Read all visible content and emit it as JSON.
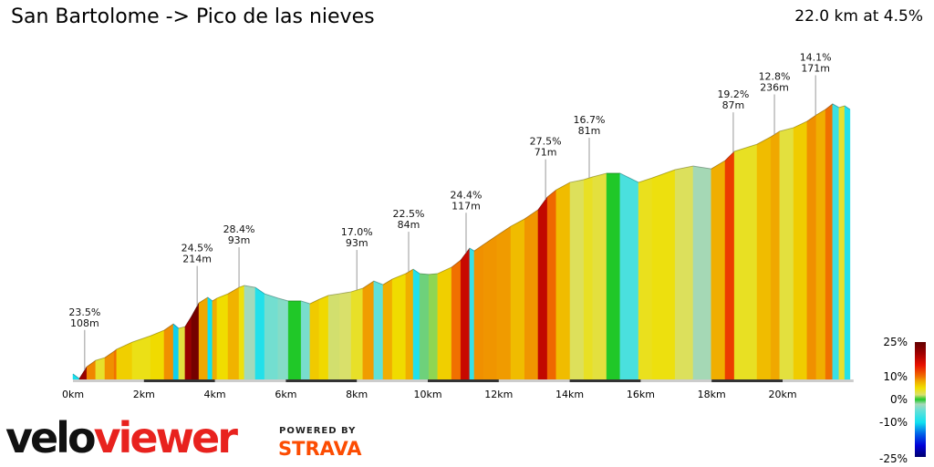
{
  "header": {
    "title": "San Bartolome -> Pico de las nieves",
    "summary": "22.0 km at 4.5%"
  },
  "branding": {
    "logo_part1": "velo",
    "logo_part2": "viewer",
    "powered_by": "POWERED BY",
    "strava": "STRAVA",
    "logo_color": "#e8221e",
    "strava_color": "#fc4c02"
  },
  "chart_data": {
    "type": "area",
    "title": "San Bartolome -> Pico de las nieves",
    "xlabel": "",
    "ylabel": "",
    "x_unit": "km",
    "xlim": [
      0,
      22
    ],
    "x_ticks": [
      "0km",
      "2km",
      "4km",
      "6km",
      "8km",
      "10km",
      "12km",
      "14km",
      "16km",
      "18km",
      "20km"
    ],
    "profile": [
      [
        0,
        20
      ],
      [
        0.18,
        3
      ],
      [
        0.39,
        46
      ],
      [
        0.64,
        69
      ],
      [
        0.9,
        79
      ],
      [
        1.16,
        102
      ],
      [
        1.23,
        109
      ],
      [
        1.67,
        135
      ],
      [
        2.19,
        158
      ],
      [
        2.57,
        178
      ],
      [
        2.83,
        201
      ],
      [
        2.98,
        185
      ],
      [
        3.16,
        191
      ],
      [
        3.34,
        228
      ],
      [
        3.55,
        277
      ],
      [
        3.8,
        297
      ],
      [
        3.93,
        284
      ],
      [
        4.06,
        294
      ],
      [
        4.37,
        310
      ],
      [
        4.68,
        333
      ],
      [
        4.83,
        340
      ],
      [
        5.14,
        333
      ],
      [
        5.4,
        310
      ],
      [
        5.78,
        294
      ],
      [
        6.07,
        284
      ],
      [
        6.43,
        284
      ],
      [
        6.68,
        274
      ],
      [
        6.94,
        290
      ],
      [
        7.2,
        304
      ],
      [
        7.51,
        310
      ],
      [
        7.84,
        317
      ],
      [
        8.17,
        330
      ],
      [
        8.48,
        356
      ],
      [
        8.74,
        343
      ],
      [
        9.0,
        363
      ],
      [
        9.38,
        383
      ],
      [
        9.59,
        399
      ],
      [
        9.77,
        383
      ],
      [
        10.03,
        380
      ],
      [
        10.28,
        383
      ],
      [
        10.67,
        406
      ],
      [
        10.93,
        432
      ],
      [
        11.18,
        475
      ],
      [
        11.31,
        465
      ],
      [
        11.57,
        488
      ],
      [
        11.95,
        521
      ],
      [
        12.34,
        554
      ],
      [
        12.73,
        581
      ],
      [
        13.11,
        614
      ],
      [
        13.37,
        660
      ],
      [
        13.62,
        686
      ],
      [
        14.01,
        713
      ],
      [
        14.4,
        723
      ],
      [
        14.65,
        733
      ],
      [
        15.04,
        746
      ],
      [
        15.42,
        746
      ],
      [
        15.94,
        713
      ],
      [
        16.32,
        729
      ],
      [
        16.97,
        759
      ],
      [
        17.48,
        772
      ],
      [
        17.99,
        762
      ],
      [
        18.38,
        792
      ],
      [
        18.64,
        825
      ],
      [
        19.28,
        851
      ],
      [
        19.67,
        878
      ],
      [
        19.92,
        898
      ],
      [
        20.31,
        911
      ],
      [
        20.69,
        934
      ],
      [
        20.95,
        957
      ],
      [
        21.21,
        977
      ],
      [
        21.41,
        997
      ],
      [
        21.59,
        984
      ],
      [
        21.75,
        990
      ],
      [
        21.9,
        977
      ]
    ],
    "annotations": [
      {
        "km": 0.33,
        "grade": "23.5%",
        "length": "108m"
      },
      {
        "km": 3.5,
        "grade": "24.5%",
        "length": "214m"
      },
      {
        "km": 4.68,
        "grade": "28.4%",
        "length": "93m"
      },
      {
        "km": 8.0,
        "grade": "17.0%",
        "length": "93m"
      },
      {
        "km": 9.46,
        "grade": "22.5%",
        "length": "84m"
      },
      {
        "km": 11.08,
        "grade": "24.4%",
        "length": "117m"
      },
      {
        "km": 13.32,
        "grade": "27.5%",
        "length": "71m"
      },
      {
        "km": 14.55,
        "grade": "16.7%",
        "length": "81m"
      },
      {
        "km": 18.61,
        "grade": "19.2%",
        "length": "87m"
      },
      {
        "km": 19.77,
        "grade": "12.8%",
        "length": "236m"
      },
      {
        "km": 20.93,
        "grade": "14.1%",
        "length": "171m"
      }
    ],
    "legend": {
      "position": "bottom-right",
      "labels": [
        "25%",
        "10%",
        "0%",
        "-10%",
        "-25%"
      ],
      "stops": [
        [
          -25,
          "#00006e"
        ],
        [
          -20,
          "#0000d8"
        ],
        [
          -15,
          "#0060e8"
        ],
        [
          -10,
          "#10e0f0"
        ],
        [
          -5,
          "#60e0d8"
        ],
        [
          -2,
          "#a8d8b8"
        ],
        [
          0,
          "#20c828"
        ],
        [
          2,
          "#d8e070"
        ],
        [
          5,
          "#f0e000"
        ],
        [
          8,
          "#f0a800"
        ],
        [
          10,
          "#f07000"
        ],
        [
          15,
          "#e81000"
        ],
        [
          20,
          "#a00000"
        ],
        [
          25,
          "#600000"
        ]
      ]
    },
    "grid": false
  }
}
